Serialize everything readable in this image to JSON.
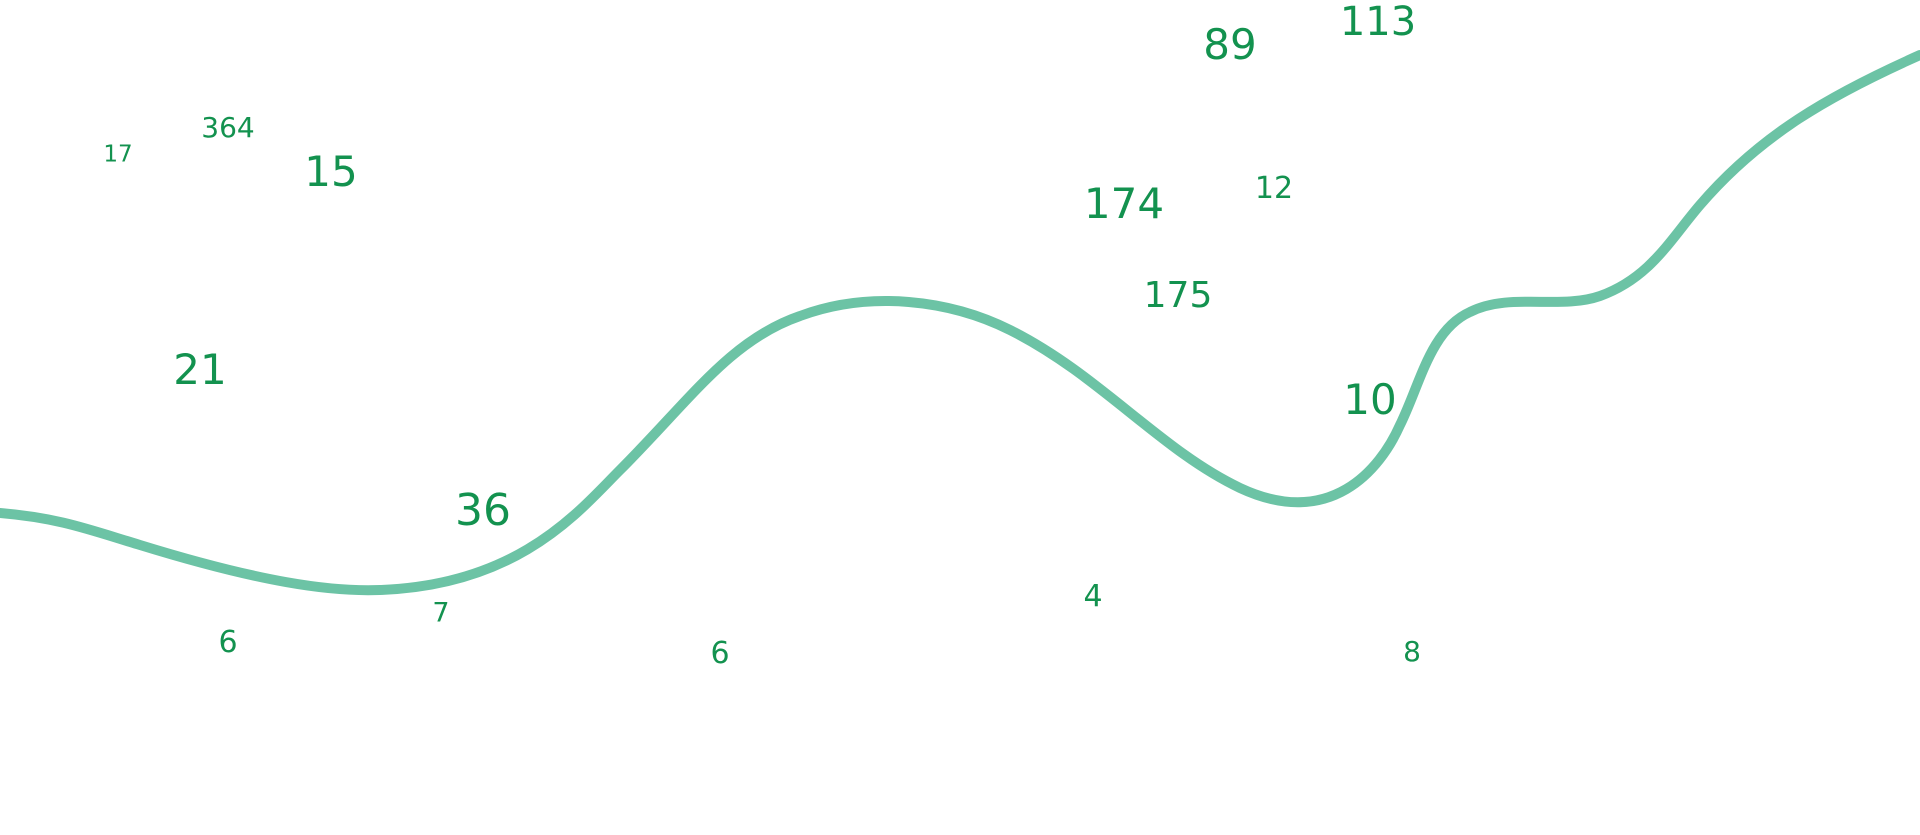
{
  "colors": {
    "number": "#13924f",
    "curve": "#6cc3a5",
    "background": "#ffffff"
  },
  "numbers": [
    "89",
    "113",
    "174",
    "12",
    "364",
    "17",
    "15",
    "175",
    "21",
    "10",
    "36",
    "4",
    "7",
    "6",
    "6",
    "8"
  ]
}
